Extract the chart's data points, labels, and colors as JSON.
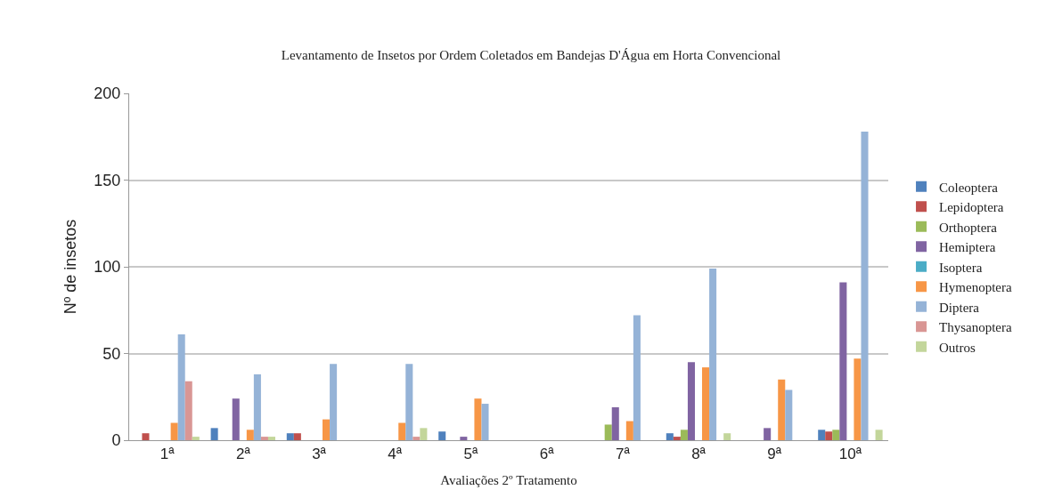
{
  "chart_data": {
    "type": "bar",
    "title": "Levantamento de Insetos por Ordem Coletados em Bandejas D'Água em Horta Convencional",
    "xlabel": "Avaliações 2º Tratamento",
    "ylabel": "Nº de insetos",
    "categories": [
      "1ª",
      "2ª",
      "3ª",
      "4ª",
      "5ª",
      "6ª",
      "7ª",
      "8ª",
      "9ª",
      "10ª"
    ],
    "series": [
      {
        "name": "Coleoptera",
        "color": "#4f81bd",
        "values": [
          0,
          7,
          4,
          0,
          5,
          0,
          0,
          4,
          0,
          6
        ]
      },
      {
        "name": "Lepidoptera",
        "color": "#c0504d",
        "values": [
          4,
          0,
          4,
          0,
          0,
          0,
          0,
          2,
          0,
          5
        ]
      },
      {
        "name": "Orthoptera",
        "color": "#9bbb59",
        "values": [
          0,
          0,
          0,
          0,
          0,
          0,
          9,
          6,
          0,
          6
        ]
      },
      {
        "name": "Hemiptera",
        "color": "#8064a2",
        "values": [
          0,
          24,
          0,
          0,
          2,
          0,
          19,
          45,
          7,
          91
        ]
      },
      {
        "name": "Isoptera",
        "color": "#4bacc6",
        "values": [
          0,
          0,
          0,
          0,
          0,
          0,
          0,
          0,
          0,
          0
        ]
      },
      {
        "name": "Hymenoptera",
        "color": "#f79646",
        "values": [
          10,
          6,
          12,
          10,
          24,
          0,
          11,
          42,
          35,
          47
        ]
      },
      {
        "name": "Diptera",
        "color": "#95b3d7",
        "values": [
          61,
          38,
          44,
          44,
          21,
          0,
          72,
          99,
          29,
          178
        ]
      },
      {
        "name": "Thysanoptera",
        "color": "#d99694",
        "values": [
          34,
          2,
          0,
          2,
          0,
          0,
          0,
          0,
          0,
          0
        ]
      },
      {
        "name": "Outros",
        "color": "#c3d69b",
        "values": [
          2,
          2,
          0,
          7,
          0,
          0,
          0,
          4,
          0,
          6
        ]
      }
    ],
    "ylim": [
      0,
      200
    ],
    "yticks": [
      0,
      50,
      100,
      150,
      200
    ],
    "grid": "y",
    "legend": "right"
  }
}
